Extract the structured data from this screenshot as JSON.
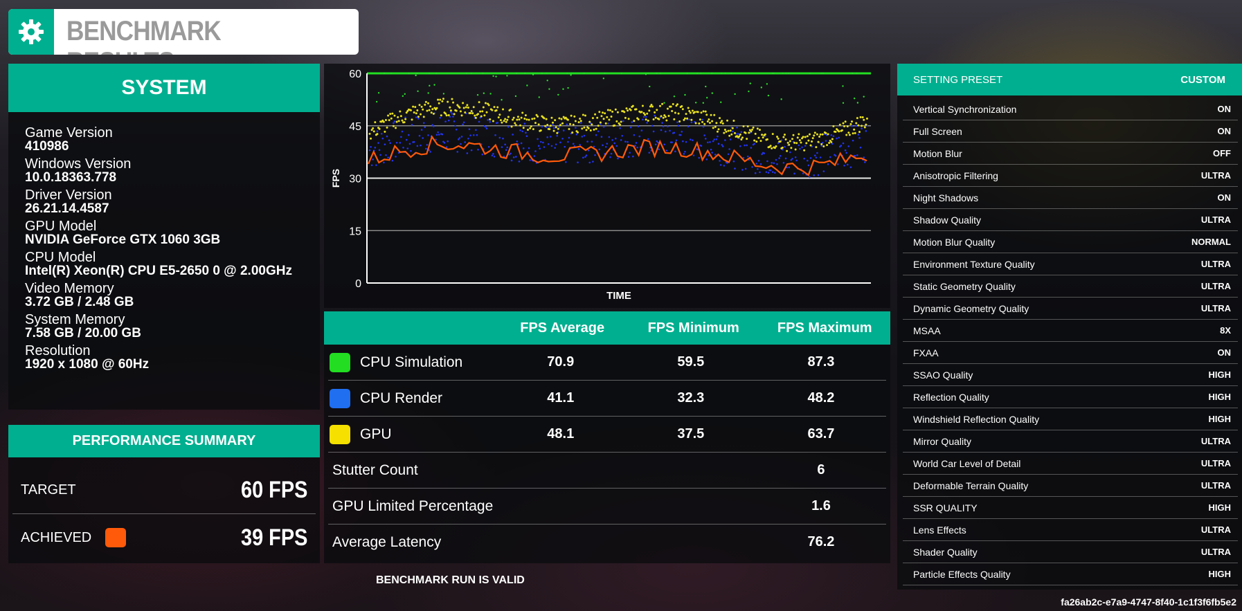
{
  "title": "BENCHMARK RESULTS",
  "system": {
    "header": "SYSTEM",
    "items": [
      {
        "label": "Game Version",
        "value": "410986"
      },
      {
        "label": "Windows Version",
        "value": "10.0.18363.778"
      },
      {
        "label": "Driver Version",
        "value": "26.21.14.4587"
      },
      {
        "label": "GPU Model",
        "value": "NVIDIA GeForce GTX 1060 3GB"
      },
      {
        "label": "CPU Model",
        "value": "Intel(R) Xeon(R) CPU E5-2650 0 @ 2.00GHz"
      },
      {
        "label": "Video Memory",
        "value": "3.72 GB / 2.48 GB"
      },
      {
        "label": "System Memory",
        "value": "7.58 GB / 20.00 GB"
      },
      {
        "label": "Resolution",
        "value": "1920 x 1080 @ 60Hz"
      }
    ]
  },
  "performance": {
    "header": "PERFORMANCE SUMMARY",
    "target_label": "TARGET",
    "target_value": "60 FPS",
    "achieved_label": "ACHIEVED",
    "achieved_value": "39 FPS",
    "achieved_color": "#ff5a0a"
  },
  "chart_data": {
    "type": "scatter",
    "xlabel": "TIME",
    "ylabel": "FPS",
    "ylim": [
      0,
      60
    ],
    "yticks": [
      0,
      15,
      30,
      45,
      60
    ],
    "target_line": 60,
    "series": [
      {
        "name": "CPU Simulation",
        "color": "#2ee02e",
        "mean": 70.9,
        "min": 59.5,
        "max": 87.3
      },
      {
        "name": "CPU Render",
        "color": "#2233ee",
        "mean": 41.1,
        "min": 32.3,
        "max": 48.2
      },
      {
        "name": "GPU",
        "color": "#e8e020",
        "mean": 48.1,
        "min": 37.5,
        "max": 63.7
      },
      {
        "name": "Achieved",
        "color": "#ff5a0a",
        "mean": 39
      }
    ]
  },
  "results": {
    "columns": [
      "FPS Average",
      "FPS Minimum",
      "FPS Maximum"
    ],
    "rows": [
      {
        "name": "CPU Simulation",
        "color": "#22dd22",
        "avg": "70.9",
        "min": "59.5",
        "max": "87.3"
      },
      {
        "name": "CPU Render",
        "color": "#1f6ff0",
        "avg": "41.1",
        "min": "32.3",
        "max": "48.2"
      },
      {
        "name": "GPU",
        "color": "#f5e000",
        "avg": "48.1",
        "min": "37.5",
        "max": "63.7"
      }
    ],
    "stats": [
      {
        "name": "Stutter Count",
        "value": "6"
      },
      {
        "name": "GPU Limited Percentage",
        "value": "1.6"
      },
      {
        "name": "Average Latency",
        "value": "76.2"
      }
    ],
    "valid_text": "BENCHMARK RUN IS VALID"
  },
  "settings": {
    "preset_label": "SETTING PRESET",
    "preset_value": "CUSTOM",
    "items": [
      {
        "label": "Vertical Synchronization",
        "value": "ON"
      },
      {
        "label": "Full Screen",
        "value": "ON"
      },
      {
        "label": "Motion Blur",
        "value": "OFF"
      },
      {
        "label": "Anisotropic Filtering",
        "value": "ULTRA"
      },
      {
        "label": "Night Shadows",
        "value": "ON"
      },
      {
        "label": "Shadow Quality",
        "value": "ULTRA"
      },
      {
        "label": "Motion Blur Quality",
        "value": "NORMAL"
      },
      {
        "label": "Environment Texture Quality",
        "value": "ULTRA"
      },
      {
        "label": "Static Geometry Quality",
        "value": "ULTRA"
      },
      {
        "label": "Dynamic Geometry Quality",
        "value": "ULTRA"
      },
      {
        "label": "MSAA",
        "value": "8X"
      },
      {
        "label": "FXAA",
        "value": "ON"
      },
      {
        "label": "SSAO Quality",
        "value": "HIGH"
      },
      {
        "label": "Reflection Quality",
        "value": "HIGH"
      },
      {
        "label": "Windshield Reflection Quality",
        "value": "HIGH"
      },
      {
        "label": "Mirror Quality",
        "value": "ULTRA"
      },
      {
        "label": "World Car Level of Detail",
        "value": "ULTRA"
      },
      {
        "label": "Deformable Terrain Quality",
        "value": "ULTRA"
      },
      {
        "label": "SSR QUALITY",
        "value": "HIGH"
      },
      {
        "label": "Lens Effects",
        "value": "ULTRA"
      },
      {
        "label": "Shader Quality",
        "value": "ULTRA"
      },
      {
        "label": "Particle Effects Quality",
        "value": "HIGH"
      }
    ]
  },
  "run_id": "fa26ab2c-e7a9-4747-8f40-1c1f3f6fb5e2"
}
